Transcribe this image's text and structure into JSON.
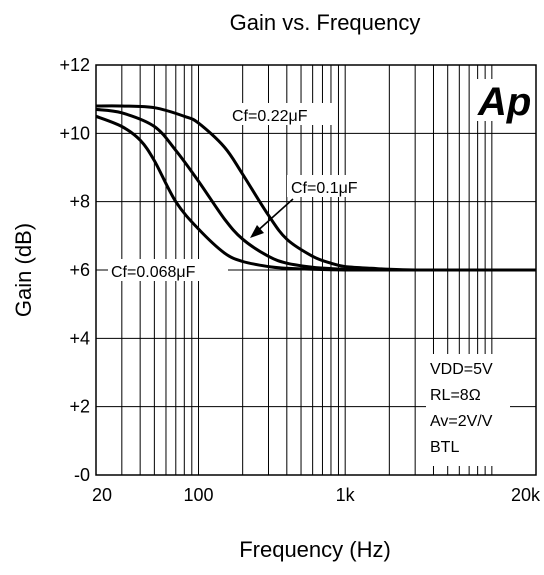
{
  "chart_data": {
    "type": "line",
    "title": "Gain vs. Frequency",
    "xlabel": "Frequency (Hz)",
    "ylabel": "Gain (dB)",
    "xscale": "log",
    "xlim": [
      20,
      20000
    ],
    "ylim": [
      0,
      12
    ],
    "grid": true,
    "x_ticks": [
      20,
      100,
      1000,
      20000
    ],
    "x_tick_labels": [
      "20",
      "100",
      "1k",
      "20k"
    ],
    "y_ticks": [
      0,
      2,
      4,
      6,
      8,
      10,
      12
    ],
    "y_tick_labels": [
      "-0",
      "+2",
      "+4",
      "+6",
      "+8",
      "+10",
      "+12"
    ],
    "series": [
      {
        "name": "Cf=0.22μF",
        "x": [
          20,
          30,
          50,
          80,
          100,
          150,
          200,
          300,
          400,
          600,
          800,
          1000,
          1500,
          2000,
          3000,
          5000,
          10000,
          20000
        ],
        "y": [
          10.8,
          10.8,
          10.75,
          10.5,
          10.3,
          9.6,
          8.8,
          7.6,
          6.9,
          6.4,
          6.2,
          6.1,
          6.05,
          6.02,
          6.0,
          6.0,
          6.0,
          6.0
        ]
      },
      {
        "name": "Cf=0.1μF",
        "x": [
          20,
          30,
          50,
          70,
          100,
          150,
          200,
          300,
          400,
          600,
          800,
          1000,
          1500,
          2000,
          5000,
          20000
        ],
        "y": [
          10.7,
          10.6,
          10.2,
          9.5,
          8.6,
          7.5,
          6.9,
          6.4,
          6.2,
          6.08,
          6.04,
          6.02,
          6.0,
          6.0,
          6.0,
          6.0
        ]
      },
      {
        "name": "Cf=0.068μF",
        "x": [
          20,
          30,
          40,
          50,
          70,
          100,
          150,
          200,
          300,
          400,
          600,
          1000,
          2000,
          20000
        ],
        "y": [
          10.5,
          10.2,
          9.8,
          9.2,
          8.0,
          7.2,
          6.5,
          6.25,
          6.1,
          6.05,
          6.02,
          6.0,
          6.0,
          6.0
        ]
      }
    ],
    "annotations": [
      "VDD=5V",
      "RL=8Ω",
      "Av=2V/V",
      "BTL"
    ],
    "logo_text": "Ap"
  }
}
